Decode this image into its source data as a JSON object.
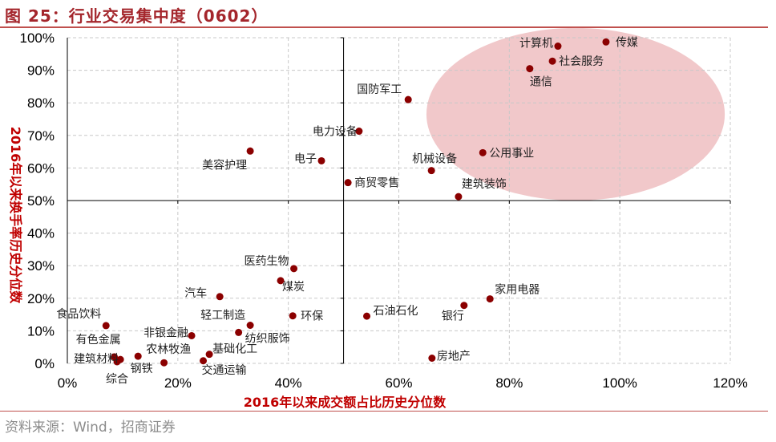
{
  "header": {
    "title": "图 25：行业交易集中度（0602）"
  },
  "footer": {
    "source": "资料来源：Wind，招商证券"
  },
  "colors": {
    "point": "#8b0000",
    "highlight": "#e8a4a6",
    "title": "#a4262c",
    "axis_title": "#c00000",
    "grid": "#c8c8c8"
  },
  "chart_data": {
    "type": "scatter",
    "xlabel": "2016年以来成交额占比历史分位数",
    "ylabel": "2016年以来换手率历史分位数",
    "xlim": [
      0,
      1.2
    ],
    "ylim": [
      0,
      1.0
    ],
    "x_ticks": [
      "0%",
      "20%",
      "40%",
      "60%",
      "80%",
      "100%",
      "120%"
    ],
    "y_ticks": [
      "0%",
      "10%",
      "20%",
      "30%",
      "40%",
      "50%",
      "60%",
      "70%",
      "80%",
      "90%",
      "100%"
    ],
    "grid": "dashed",
    "crosshair": {
      "x": 0.5,
      "y": 0.5
    },
    "highlight_region": {
      "shape": "ellipse",
      "cx": 0.92,
      "cy": 0.765,
      "rx": 0.27,
      "ry": 0.265
    },
    "points": [
      {
        "name": "传媒",
        "x": 0.975,
        "y": 0.987
      },
      {
        "name": "计算机",
        "x": 0.888,
        "y": 0.974
      },
      {
        "name": "社会服务",
        "x": 0.878,
        "y": 0.928
      },
      {
        "name": "通信",
        "x": 0.837,
        "y": 0.905
      },
      {
        "name": "国防军工",
        "x": 0.617,
        "y": 0.81
      },
      {
        "name": "电力设备",
        "x": 0.528,
        "y": 0.713
      },
      {
        "name": "美容护理",
        "x": 0.331,
        "y": 0.652
      },
      {
        "name": "电子",
        "x": 0.46,
        "y": 0.622
      },
      {
        "name": "公用事业",
        "x": 0.752,
        "y": 0.647
      },
      {
        "name": "机械设备",
        "x": 0.659,
        "y": 0.592
      },
      {
        "name": "商贸零售",
        "x": 0.508,
        "y": 0.555
      },
      {
        "name": "建筑装饰",
        "x": 0.708,
        "y": 0.512
      },
      {
        "name": "医药生物",
        "x": 0.41,
        "y": 0.291
      },
      {
        "name": "煤炭",
        "x": 0.386,
        "y": 0.254
      },
      {
        "name": "汽车",
        "x": 0.276,
        "y": 0.205
      },
      {
        "name": "家用电器",
        "x": 0.765,
        "y": 0.198
      },
      {
        "name": "银行",
        "x": 0.718,
        "y": 0.178
      },
      {
        "name": "石油石化",
        "x": 0.542,
        "y": 0.145
      },
      {
        "name": "环保",
        "x": 0.408,
        "y": 0.146
      },
      {
        "name": "轻工制造",
        "x": 0.331,
        "y": 0.117
      },
      {
        "name": "纺织服饰",
        "x": 0.31,
        "y": 0.095
      },
      {
        "name": "非银金融",
        "x": 0.225,
        "y": 0.085
      },
      {
        "name": "食品饮料",
        "x": 0.07,
        "y": 0.116
      },
      {
        "name": "农林牧渔",
        "x": 0.128,
        "y": 0.022
      },
      {
        "name": "基础化工",
        "x": 0.257,
        "y": 0.028
      },
      {
        "name": "房地产",
        "x": 0.66,
        "y": 0.016
      },
      {
        "name": "有色金属",
        "x": 0.085,
        "y": 0.02
      },
      {
        "name": "建筑材料",
        "x": 0.096,
        "y": 0.012
      },
      {
        "name": "综合",
        "x": 0.09,
        "y": 0.005
      },
      {
        "name": "钢铁",
        "x": 0.175,
        "y": 0.002
      },
      {
        "name": "交通运输",
        "x": 0.246,
        "y": 0.008
      }
    ]
  }
}
